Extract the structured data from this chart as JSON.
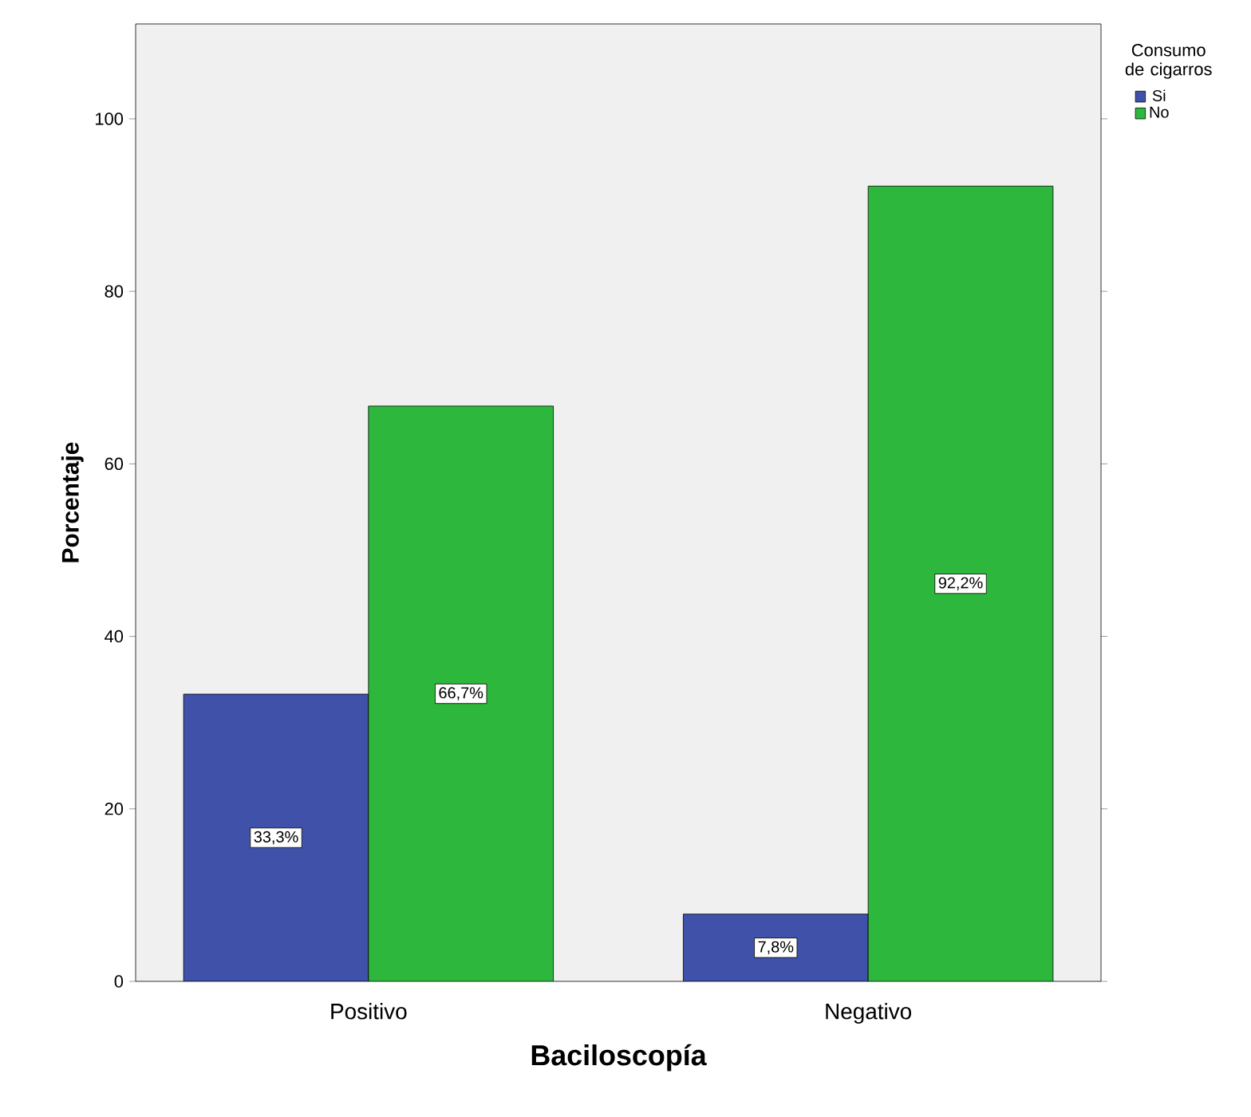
{
  "chart_data": {
    "type": "bar",
    "xlabel": "Baciloscopía",
    "ylabel": "Porcentaje",
    "legend_title": "Consumo de cigarros",
    "categories": [
      "Positivo",
      "Negativo"
    ],
    "series": [
      {
        "name": "Si",
        "color": "#3f51a8",
        "values": [
          33.3,
          7.8
        ],
        "value_labels": [
          "33,3%",
          "7,8%"
        ]
      },
      {
        "name": "No",
        "color": "#2db83d",
        "values": [
          66.7,
          92.2
        ],
        "value_labels": [
          "66,7%",
          "92,2%"
        ]
      }
    ],
    "ylim": [
      0,
      111
    ],
    "yticks": [
      0,
      20,
      40,
      60,
      80,
      100
    ],
    "grid": false,
    "legend": "top right"
  }
}
